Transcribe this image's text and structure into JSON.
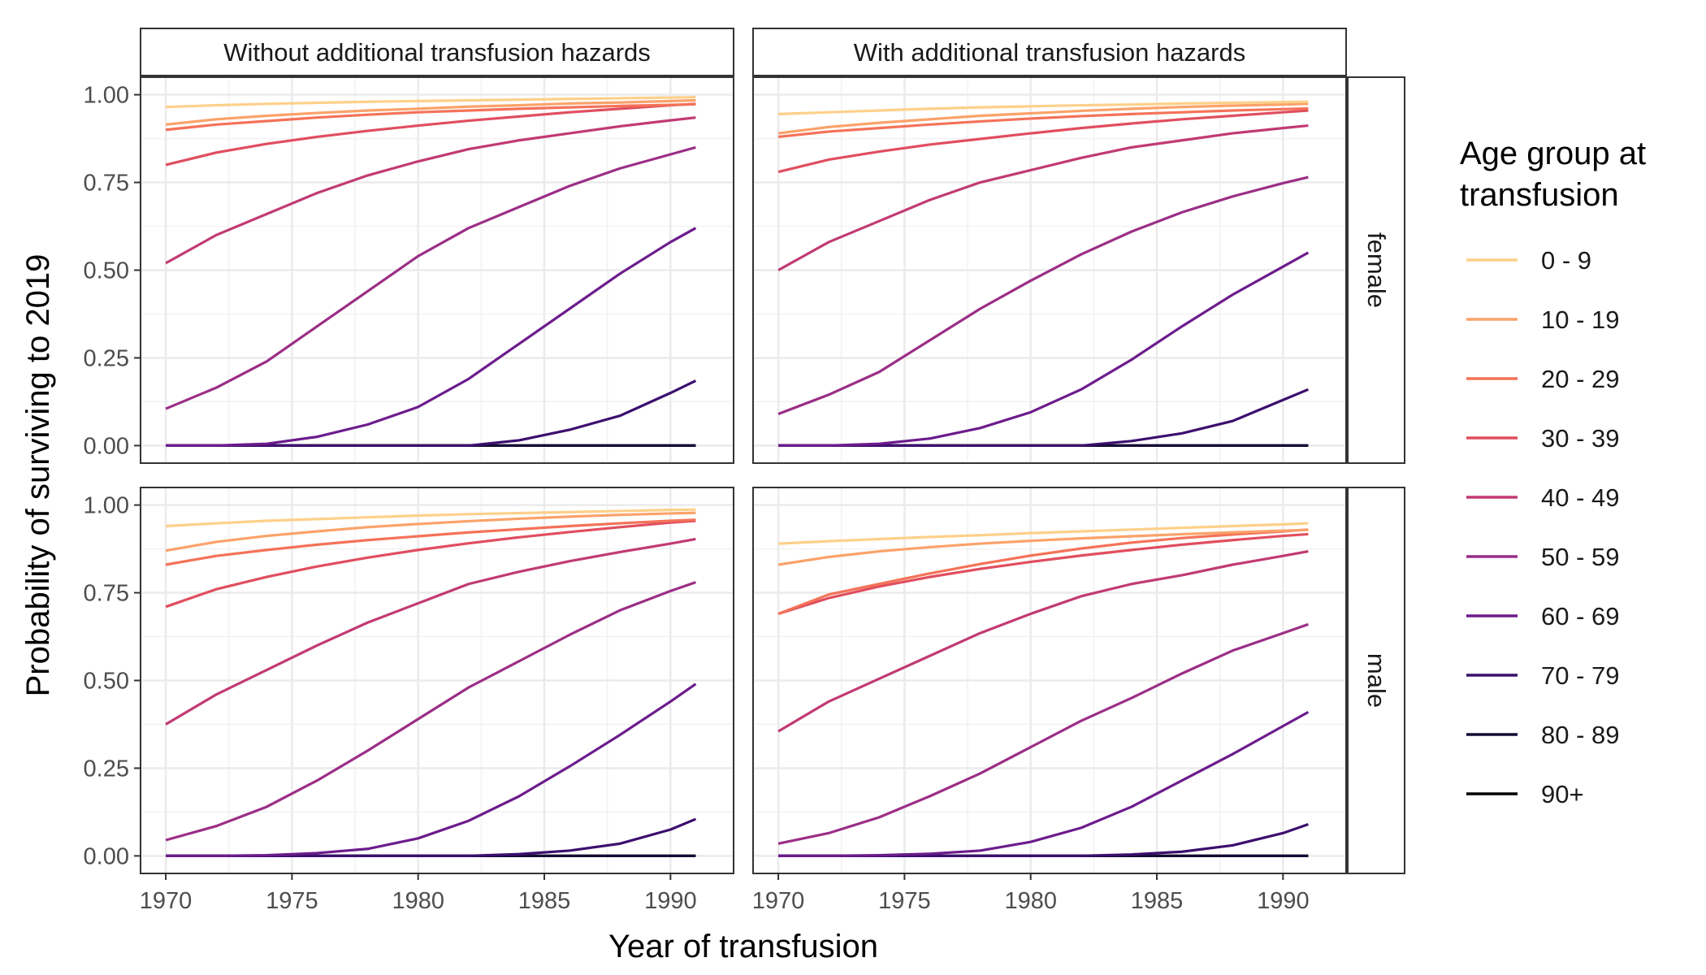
{
  "chart_data": {
    "type": "line",
    "facets": {
      "columns": [
        "Without additional transfusion hazards",
        "With additional transfusion hazards"
      ],
      "rows": [
        "female",
        "male"
      ]
    },
    "xlabel": "Year of transfusion",
    "ylabel": "Probability of surviving to 2019",
    "xlim": [
      1969.0,
      1992.5
    ],
    "ylim": [
      -0.05,
      1.05
    ],
    "xticks": [
      1970,
      1975,
      1980,
      1985,
      1990
    ],
    "yticks": [
      0.0,
      0.25,
      0.5,
      0.75,
      1.0
    ],
    "ytick_labels": [
      "0.00",
      "0.25",
      "0.50",
      "0.75",
      "1.00"
    ],
    "grid": true,
    "legend": {
      "title_lines": [
        "Age group at",
        "transfusion"
      ],
      "position": "right",
      "entries": [
        {
          "label": "0 - 9",
          "color": "#FDD08A"
        },
        {
          "label": "10 - 19",
          "color": "#FBA26A"
        },
        {
          "label": "20 - 29",
          "color": "#F47258"
        },
        {
          "label": "30 - 39",
          "color": "#E04E5E"
        },
        {
          "label": "40 - 49",
          "color": "#C13A74"
        },
        {
          "label": "50 - 59",
          "color": "#9B2E86"
        },
        {
          "label": "60 - 69",
          "color": "#6C1C8C"
        },
        {
          "label": "70 - 79",
          "color": "#3C0F6E"
        },
        {
          "label": "80 - 89",
          "color": "#150B33"
        },
        {
          "label": "90+",
          "color": "#000004"
        }
      ]
    },
    "x": [
      1970,
      1972,
      1974,
      1976,
      1978,
      1980,
      1982,
      1984,
      1986,
      1988,
      1990,
      1991
    ],
    "panels": [
      {
        "column": "Without additional transfusion hazards",
        "row": "female",
        "series": [
          {
            "name": "0 - 9",
            "values": [
              0.965,
              0.97,
              0.974,
              0.977,
              0.98,
              0.982,
              0.984,
              0.986,
              0.988,
              0.99,
              0.992,
              0.993
            ]
          },
          {
            "name": "10 - 19",
            "values": [
              0.915,
              0.93,
              0.94,
              0.948,
              0.955,
              0.96,
              0.966,
              0.97,
              0.975,
              0.978,
              0.982,
              0.984
            ]
          },
          {
            "name": "20 - 29",
            "values": [
              0.9,
              0.915,
              0.925,
              0.935,
              0.943,
              0.95,
              0.955,
              0.96,
              0.964,
              0.968,
              0.971,
              0.973
            ]
          },
          {
            "name": "30 - 39",
            "values": [
              0.8,
              0.835,
              0.86,
              0.88,
              0.897,
              0.912,
              0.926,
              0.938,
              0.95,
              0.96,
              0.97,
              0.974
            ]
          },
          {
            "name": "40 - 49",
            "values": [
              0.52,
              0.6,
              0.66,
              0.72,
              0.77,
              0.81,
              0.845,
              0.87,
              0.89,
              0.91,
              0.927,
              0.935
            ]
          },
          {
            "name": "50 - 59",
            "values": [
              0.105,
              0.165,
              0.24,
              0.34,
              0.44,
              0.54,
              0.62,
              0.68,
              0.74,
              0.79,
              0.83,
              0.85
            ]
          },
          {
            "name": "60 - 69",
            "values": [
              0.0,
              0.0,
              0.005,
              0.025,
              0.06,
              0.11,
              0.19,
              0.29,
              0.39,
              0.49,
              0.58,
              0.62
            ]
          },
          {
            "name": "70 - 79",
            "values": [
              0.0,
              0.0,
              0.0,
              0.0,
              0.0,
              0.0,
              0.0,
              0.015,
              0.045,
              0.085,
              0.15,
              0.185
            ]
          },
          {
            "name": "80 - 89",
            "values": [
              0.0,
              0.0,
              0.0,
              0.0,
              0.0,
              0.0,
              0.0,
              0.0,
              0.0,
              0.0,
              0.0,
              0.0
            ]
          },
          {
            "name": "90+",
            "values": [
              0.0,
              0.0,
              0.0,
              0.0,
              0.0,
              0.0,
              0.0,
              0.0,
              0.0,
              0.0,
              0.0,
              0.0
            ]
          }
        ]
      },
      {
        "column": "With additional transfusion hazards",
        "row": "female",
        "series": [
          {
            "name": "0 - 9",
            "values": [
              0.945,
              0.95,
              0.955,
              0.96,
              0.964,
              0.967,
              0.97,
              0.972,
              0.975,
              0.977,
              0.979,
              0.98
            ]
          },
          {
            "name": "10 - 19",
            "values": [
              0.89,
              0.908,
              0.92,
              0.93,
              0.94,
              0.947,
              0.954,
              0.96,
              0.965,
              0.969,
              0.972,
              0.974
            ]
          },
          {
            "name": "20 - 29",
            "values": [
              0.88,
              0.895,
              0.905,
              0.915,
              0.924,
              0.932,
              0.939,
              0.945,
              0.95,
              0.955,
              0.959,
              0.961
            ]
          },
          {
            "name": "30 - 39",
            "values": [
              0.78,
              0.815,
              0.838,
              0.858,
              0.874,
              0.89,
              0.905,
              0.918,
              0.93,
              0.94,
              0.95,
              0.955
            ]
          },
          {
            "name": "40 - 49",
            "values": [
              0.5,
              0.58,
              0.64,
              0.7,
              0.75,
              0.785,
              0.82,
              0.85,
              0.87,
              0.89,
              0.905,
              0.912
            ]
          },
          {
            "name": "50 - 59",
            "values": [
              0.09,
              0.145,
              0.21,
              0.3,
              0.39,
              0.47,
              0.545,
              0.61,
              0.665,
              0.71,
              0.748,
              0.765
            ]
          },
          {
            "name": "60 - 69",
            "values": [
              0.0,
              0.0,
              0.005,
              0.02,
              0.05,
              0.095,
              0.16,
              0.245,
              0.34,
              0.43,
              0.51,
              0.55
            ]
          },
          {
            "name": "70 - 79",
            "values": [
              0.0,
              0.0,
              0.0,
              0.0,
              0.0,
              0.0,
              0.0,
              0.013,
              0.035,
              0.07,
              0.13,
              0.16
            ]
          },
          {
            "name": "80 - 89",
            "values": [
              0.0,
              0.0,
              0.0,
              0.0,
              0.0,
              0.0,
              0.0,
              0.0,
              0.0,
              0.0,
              0.0,
              0.0
            ]
          },
          {
            "name": "90+",
            "values": [
              0.0,
              0.0,
              0.0,
              0.0,
              0.0,
              0.0,
              0.0,
              0.0,
              0.0,
              0.0,
              0.0,
              0.0
            ]
          }
        ]
      },
      {
        "column": "Without additional transfusion hazards",
        "row": "male",
        "series": [
          {
            "name": "0 - 9",
            "values": [
              0.94,
              0.948,
              0.955,
              0.96,
              0.965,
              0.97,
              0.974,
              0.977,
              0.98,
              0.983,
              0.986,
              0.987
            ]
          },
          {
            "name": "10 - 19",
            "values": [
              0.87,
              0.895,
              0.912,
              0.925,
              0.937,
              0.946,
              0.954,
              0.961,
              0.967,
              0.972,
              0.976,
              0.978
            ]
          },
          {
            "name": "20 - 29",
            "values": [
              0.83,
              0.855,
              0.872,
              0.887,
              0.9,
              0.911,
              0.922,
              0.931,
              0.94,
              0.948,
              0.955,
              0.958
            ]
          },
          {
            "name": "30 - 39",
            "values": [
              0.71,
              0.76,
              0.795,
              0.825,
              0.85,
              0.872,
              0.891,
              0.908,
              0.923,
              0.937,
              0.95,
              0.955
            ]
          },
          {
            "name": "40 - 49",
            "values": [
              0.375,
              0.46,
              0.53,
              0.6,
              0.665,
              0.72,
              0.775,
              0.81,
              0.84,
              0.866,
              0.89,
              0.903
            ]
          },
          {
            "name": "50 - 59",
            "values": [
              0.045,
              0.085,
              0.14,
              0.215,
              0.3,
              0.39,
              0.48,
              0.555,
              0.63,
              0.7,
              0.755,
              0.78
            ]
          },
          {
            "name": "60 - 69",
            "values": [
              0.0,
              0.0,
              0.002,
              0.008,
              0.02,
              0.05,
              0.1,
              0.17,
              0.255,
              0.345,
              0.44,
              0.49
            ]
          },
          {
            "name": "70 - 79",
            "values": [
              0.0,
              0.0,
              0.0,
              0.0,
              0.0,
              0.0,
              0.0,
              0.005,
              0.015,
              0.035,
              0.075,
              0.105
            ]
          },
          {
            "name": "80 - 89",
            "values": [
              0.0,
              0.0,
              0.0,
              0.0,
              0.0,
              0.0,
              0.0,
              0.0,
              0.0,
              0.0,
              0.0,
              0.0
            ]
          },
          {
            "name": "90+",
            "values": [
              0.0,
              0.0,
              0.0,
              0.0,
              0.0,
              0.0,
              0.0,
              0.0,
              0.0,
              0.0,
              0.0,
              0.0
            ]
          }
        ]
      },
      {
        "column": "With additional transfusion hazards",
        "row": "male",
        "series": [
          {
            "name": "0 - 9",
            "values": [
              0.89,
              0.897,
              0.903,
              0.909,
              0.914,
              0.92,
              0.925,
              0.93,
              0.935,
              0.94,
              0.945,
              0.948
            ]
          },
          {
            "name": "10 - 19",
            "values": [
              0.83,
              0.852,
              0.868,
              0.88,
              0.89,
              0.898,
              0.905,
              0.911,
              0.917,
              0.922,
              0.927,
              0.929
            ]
          },
          {
            "name": "20 - 29",
            "values": [
              0.69,
              0.745,
              0.775,
              0.805,
              0.832,
              0.856,
              0.876,
              0.893,
              0.906,
              0.916,
              0.925,
              0.93
            ]
          },
          {
            "name": "30 - 39",
            "values": [
              0.69,
              0.735,
              0.768,
              0.795,
              0.818,
              0.838,
              0.856,
              0.872,
              0.887,
              0.9,
              0.912,
              0.917
            ]
          },
          {
            "name": "40 - 49",
            "values": [
              0.355,
              0.44,
              0.505,
              0.57,
              0.635,
              0.69,
              0.74,
              0.775,
              0.8,
              0.83,
              0.855,
              0.868
            ]
          },
          {
            "name": "50 - 59",
            "values": [
              0.035,
              0.065,
              0.11,
              0.17,
              0.235,
              0.31,
              0.385,
              0.45,
              0.52,
              0.585,
              0.635,
              0.66
            ]
          },
          {
            "name": "60 - 69",
            "values": [
              0.0,
              0.0,
              0.002,
              0.006,
              0.015,
              0.04,
              0.08,
              0.14,
              0.215,
              0.29,
              0.37,
              0.41
            ]
          },
          {
            "name": "70 - 79",
            "values": [
              0.0,
              0.0,
              0.0,
              0.0,
              0.0,
              0.0,
              0.0,
              0.004,
              0.012,
              0.03,
              0.065,
              0.09
            ]
          },
          {
            "name": "80 - 89",
            "values": [
              0.0,
              0.0,
              0.0,
              0.0,
              0.0,
              0.0,
              0.0,
              0.0,
              0.0,
              0.0,
              0.0,
              0.0
            ]
          },
          {
            "name": "90+",
            "values": [
              0.0,
              0.0,
              0.0,
              0.0,
              0.0,
              0.0,
              0.0,
              0.0,
              0.0,
              0.0,
              0.0,
              0.0
            ]
          }
        ]
      }
    ]
  }
}
